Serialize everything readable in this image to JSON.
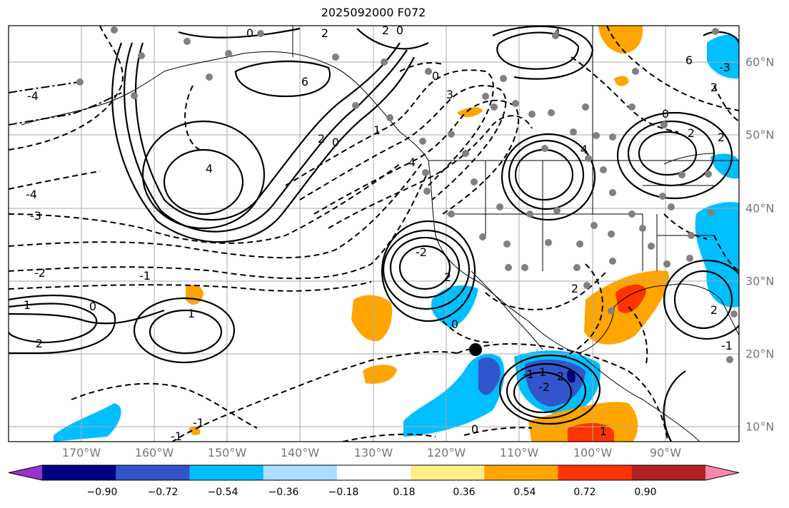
{
  "title": "2025092000 F072",
  "map": {
    "lon_labels": [
      "170°W",
      "160°W",
      "150°W",
      "140°W",
      "130°W",
      "120°W",
      "110°W",
      "100°W",
      "90°W"
    ],
    "lat_labels": [
      "60°N",
      "50°N",
      "40°N",
      "30°N",
      "20°N",
      "10°N"
    ],
    "extent": {
      "lon_min": -180,
      "lon_max": -80,
      "lat_min": 8,
      "lat_max": 65
    },
    "marker": {
      "lon": -116.5,
      "lat": 20.5,
      "color": "#000000"
    },
    "contour_labels": [
      "0",
      "2",
      "2",
      "0",
      "4",
      "6",
      "4",
      "-4",
      "-4",
      "-3",
      "-2",
      "-1",
      "2",
      "0",
      "1",
      "0",
      "3",
      "4",
      "1",
      "2",
      "1",
      "-2",
      "0",
      "-1",
      "2",
      "0",
      "-3",
      "2",
      "4",
      "6",
      "2",
      "0",
      "2",
      "2",
      "1",
      "-1",
      "1",
      "2",
      "-2",
      "0",
      "-1",
      "2",
      "-1"
    ],
    "gridlines": true,
    "station_color": "#808080"
  },
  "colorbar": {
    "ticks": [
      "−0.90",
      "−0.72",
      "−0.54",
      "−0.36",
      "−0.18",
      "0.18",
      "0.36",
      "0.54",
      "0.72",
      "0.90"
    ],
    "colors": [
      "#9933cc",
      "#000080",
      "#3355cc",
      "#00bfff",
      "#aaddff",
      "#ffffff",
      "#ffee88",
      "#ffa500",
      "#ff3300",
      "#b22222",
      "#ff88aa"
    ],
    "extend": "both"
  }
}
